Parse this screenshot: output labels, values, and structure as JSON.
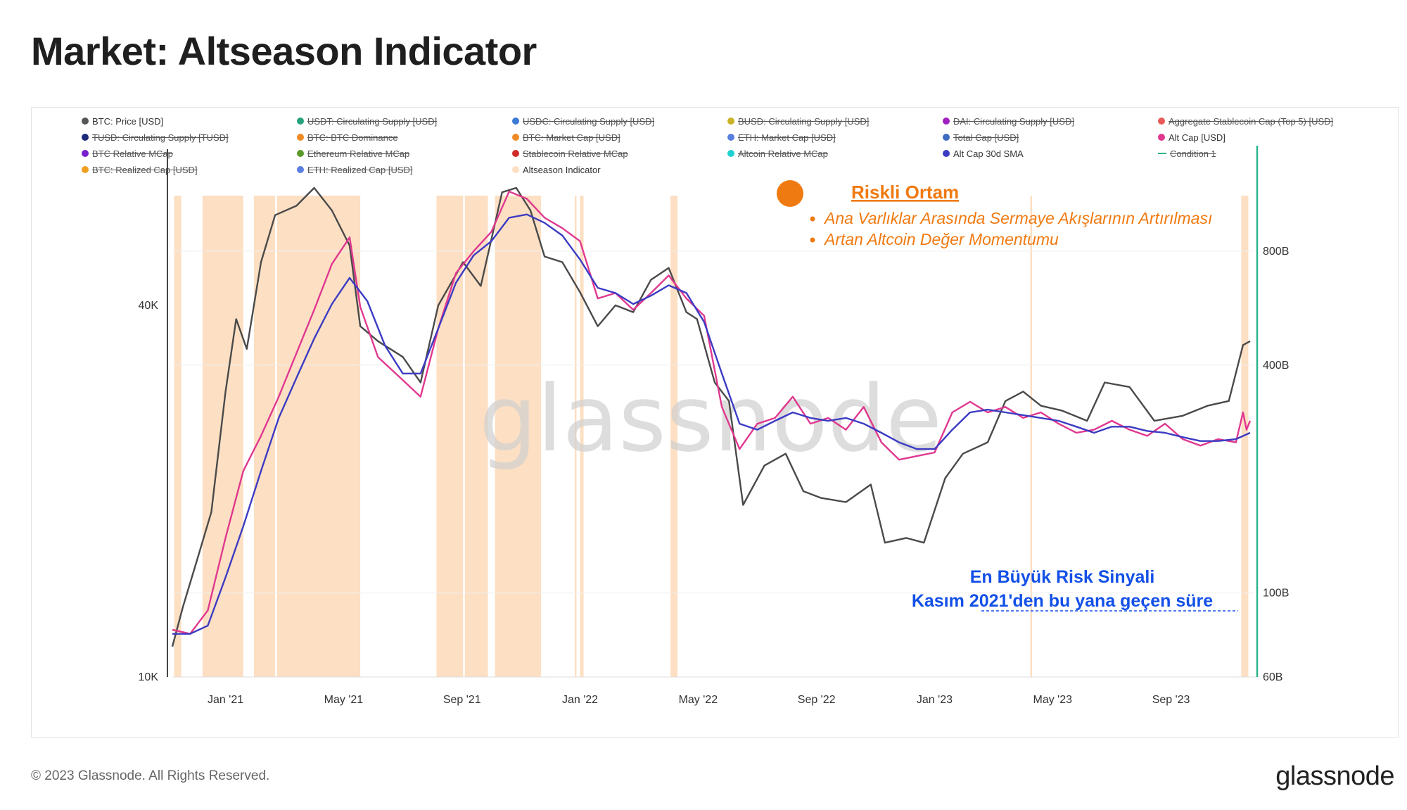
{
  "page": {
    "title": "Market: Altseason Indicator",
    "copyright": "© 2023 Glassnode. All Rights Reserved.",
    "logo_text": "glassnode",
    "watermark": "glassnode"
  },
  "colors": {
    "btc_price": "#4a4a4a",
    "alt_cap": "#e0388f",
    "alt_sma": "#3b3bc4",
    "altseason": "#fde0c4",
    "condition_line": "#2bb38a",
    "annotation_orange": "#f07a12",
    "annotation_blue": "#1350e8"
  },
  "legend": [
    {
      "label": "BTC: Price [USD]",
      "color": "#555555",
      "active": true,
      "marker": "dot"
    },
    {
      "label": "USDT: Circulating Supply [USD]",
      "color": "#26a17b",
      "active": false,
      "marker": "dot"
    },
    {
      "label": "USDC: Circulating Supply [USD]",
      "color": "#3a7bd5",
      "active": false,
      "marker": "dot"
    },
    {
      "label": "BUSD: Circulating Supply [USD]",
      "color": "#c9b427",
      "active": false,
      "marker": "dot"
    },
    {
      "label": "DAI: Circulating Supply [USD]",
      "color": "#a020c0",
      "active": false,
      "marker": "dot"
    },
    {
      "label": "Aggregate Stablecoin Cap (Top 5) [USD]",
      "color": "#e85a5a",
      "active": false,
      "marker": "dot"
    },
    {
      "label": "TUSD: Circulating Supply [TUSD]",
      "color": "#1c2a7a",
      "active": false,
      "marker": "dot"
    },
    {
      "label": "BTC: BTC Dominance",
      "color": "#f08a24",
      "active": false,
      "marker": "dot"
    },
    {
      "label": "BTC: Market Cap [USD]",
      "color": "#f08a24",
      "active": false,
      "marker": "dot"
    },
    {
      "label": "ETH: Market Cap [USD]",
      "color": "#5b7fe0",
      "active": false,
      "marker": "dot"
    },
    {
      "label": "Total Cap [USD]",
      "color": "#3d6cc0",
      "active": false,
      "marker": "dot"
    },
    {
      "label": "Alt Cap [USD]",
      "color": "#e0388f",
      "active": true,
      "marker": "dot"
    },
    {
      "label": "BTC Relative MCap",
      "color": "#7a1fd0",
      "active": false,
      "marker": "dot"
    },
    {
      "label": "Ethereum Relative MCap",
      "color": "#5a9a2a",
      "active": false,
      "marker": "dot"
    },
    {
      "label": "Stablecoin Relative MCap",
      "color": "#d02a2a",
      "active": false,
      "marker": "dot"
    },
    {
      "label": "Altcoin Relative MCap",
      "color": "#20d0d0",
      "active": false,
      "marker": "dot"
    },
    {
      "label": "Alt Cap 30d SMA",
      "color": "#3b3bc4",
      "active": true,
      "marker": "dot"
    },
    {
      "label": "Condition 1",
      "color": "#2bb38a",
      "active": false,
      "marker": "dash"
    },
    {
      "label": "BTC: Realized Cap [USD]",
      "color": "#f0a020",
      "active": false,
      "marker": "dot"
    },
    {
      "label": "ETH: Realized Cap [USD]",
      "color": "#5b7fe0",
      "active": false,
      "marker": "dot"
    },
    {
      "label": "Altseason Indicator",
      "color": "#fde0c4",
      "active": true,
      "marker": "dot"
    }
  ],
  "annotations": {
    "risk_title": "Riskli Ortam",
    "risk_bullets": [
      "Ana Varlıklar Arasında Sermaye Akışlarının Artırılması",
      "Artan Altcoin Değer Momentumu"
    ],
    "signal_line1": "En Büyük Risk Sinyali",
    "signal_line2": "Kasım 2021'den bu yana geçen süre"
  },
  "chart_data": {
    "type": "line",
    "title": "Market: Altseason Indicator",
    "x_range": [
      2020.85,
      2023.9
    ],
    "x_ticks": [
      {
        "label": "Jan '21",
        "t": 2021.0
      },
      {
        "label": "May '21",
        "t": 2021.333
      },
      {
        "label": "Sep '21",
        "t": 2021.667
      },
      {
        "label": "Jan '22",
        "t": 2022.0
      },
      {
        "label": "May '22",
        "t": 2022.333
      },
      {
        "label": "Sep '22",
        "t": 2022.667
      },
      {
        "label": "Jan '23",
        "t": 2023.0
      },
      {
        "label": "May '23",
        "t": 2023.333
      },
      {
        "label": "Sep '23",
        "t": 2023.667
      }
    ],
    "left_axis": {
      "scale": "log",
      "range": [
        10000,
        72000
      ],
      "ticks": [
        {
          "label": "10K",
          "v": 10000
        },
        {
          "label": "40K",
          "v": 40000
        }
      ]
    },
    "right_axis": {
      "scale": "log",
      "range": [
        60000000000,
        1500000000000
      ],
      "ticks": [
        {
          "label": "60B",
          "v": 60000000000
        },
        {
          "label": "100B",
          "v": 100000000000
        },
        {
          "label": "400B",
          "v": 400000000000
        },
        {
          "label": "800B",
          "v": 800000000000
        }
      ]
    },
    "condition_line_t": 2023.9,
    "altseason_periods": [
      [
        2020.855,
        2020.875
      ],
      [
        2020.935,
        2021.05
      ],
      [
        2021.08,
        2021.14
      ],
      [
        2021.145,
        2021.38
      ],
      [
        2021.595,
        2021.67
      ],
      [
        2021.675,
        2021.74
      ],
      [
        2021.76,
        2021.89
      ],
      [
        2021.985,
        2021.99
      ],
      [
        2022.0,
        2022.01
      ],
      [
        2022.255,
        2022.275
      ],
      [
        2023.27,
        2023.275
      ],
      [
        2023.865,
        2023.885
      ]
    ],
    "series": [
      {
        "name": "BTC: Price [USD]",
        "axis": "left",
        "points": [
          [
            2020.85,
            11200
          ],
          [
            2020.88,
            13000
          ],
          [
            2020.92,
            15500
          ],
          [
            2020.96,
            18500
          ],
          [
            2021.0,
            29000
          ],
          [
            2021.03,
            38000
          ],
          [
            2021.06,
            34000
          ],
          [
            2021.1,
            47000
          ],
          [
            2021.14,
            56000
          ],
          [
            2021.2,
            58000
          ],
          [
            2021.25,
            62000
          ],
          [
            2021.3,
            57000
          ],
          [
            2021.35,
            50000
          ],
          [
            2021.38,
            37000
          ],
          [
            2021.43,
            35000
          ],
          [
            2021.5,
            33000
          ],
          [
            2021.55,
            30000
          ],
          [
            2021.6,
            40000
          ],
          [
            2021.67,
            47000
          ],
          [
            2021.72,
            43000
          ],
          [
            2021.78,
            61000
          ],
          [
            2021.82,
            62000
          ],
          [
            2021.86,
            57000
          ],
          [
            2021.9,
            48000
          ],
          [
            2021.95,
            47000
          ],
          [
            2022.0,
            42000
          ],
          [
            2022.05,
            37000
          ],
          [
            2022.1,
            40000
          ],
          [
            2022.15,
            39000
          ],
          [
            2022.2,
            44000
          ],
          [
            2022.25,
            46000
          ],
          [
            2022.3,
            39000
          ],
          [
            2022.33,
            38000
          ],
          [
            2022.38,
            30000
          ],
          [
            2022.42,
            28000
          ],
          [
            2022.46,
            19000
          ],
          [
            2022.52,
            22000
          ],
          [
            2022.58,
            23000
          ],
          [
            2022.63,
            20000
          ],
          [
            2022.68,
            19500
          ],
          [
            2022.75,
            19200
          ],
          [
            2022.82,
            20500
          ],
          [
            2022.86,
            16500
          ],
          [
            2022.92,
            16800
          ],
          [
            2022.97,
            16500
          ],
          [
            2023.03,
            21000
          ],
          [
            2023.08,
            23000
          ],
          [
            2023.15,
            24000
          ],
          [
            2023.2,
            28000
          ],
          [
            2023.25,
            29000
          ],
          [
            2023.3,
            27500
          ],
          [
            2023.36,
            27000
          ],
          [
            2023.43,
            26000
          ],
          [
            2023.48,
            30000
          ],
          [
            2023.55,
            29500
          ],
          [
            2023.62,
            26000
          ],
          [
            2023.7,
            26500
          ],
          [
            2023.77,
            27500
          ],
          [
            2023.83,
            28000
          ],
          [
            2023.87,
            34500
          ],
          [
            2023.89,
            35000
          ]
        ]
      },
      {
        "name": "Alt Cap [USD]",
        "axis": "right",
        "points": [
          [
            2020.85,
            80000000000
          ],
          [
            2020.9,
            78000000000
          ],
          [
            2020.95,
            90000000000
          ],
          [
            2021.0,
            140000000000
          ],
          [
            2021.05,
            210000000000
          ],
          [
            2021.1,
            260000000000
          ],
          [
            2021.15,
            330000000000
          ],
          [
            2021.2,
            430000000000
          ],
          [
            2021.25,
            560000000000
          ],
          [
            2021.3,
            740000000000
          ],
          [
            2021.35,
            870000000000
          ],
          [
            2021.38,
            570000000000
          ],
          [
            2021.43,
            420000000000
          ],
          [
            2021.48,
            380000000000
          ],
          [
            2021.55,
            330000000000
          ],
          [
            2021.6,
            500000000000
          ],
          [
            2021.65,
            700000000000
          ],
          [
            2021.7,
            800000000000
          ],
          [
            2021.75,
            900000000000
          ],
          [
            2021.8,
            1150000000000
          ],
          [
            2021.85,
            1100000000000
          ],
          [
            2021.9,
            980000000000
          ],
          [
            2021.95,
            920000000000
          ],
          [
            2022.0,
            850000000000
          ],
          [
            2022.05,
            600000000000
          ],
          [
            2022.1,
            620000000000
          ],
          [
            2022.15,
            560000000000
          ],
          [
            2022.2,
            620000000000
          ],
          [
            2022.25,
            690000000000
          ],
          [
            2022.3,
            600000000000
          ],
          [
            2022.35,
            540000000000
          ],
          [
            2022.4,
            310000000000
          ],
          [
            2022.45,
            240000000000
          ],
          [
            2022.5,
            280000000000
          ],
          [
            2022.55,
            290000000000
          ],
          [
            2022.6,
            330000000000
          ],
          [
            2022.65,
            280000000000
          ],
          [
            2022.7,
            290000000000
          ],
          [
            2022.75,
            270000000000
          ],
          [
            2022.8,
            310000000000
          ],
          [
            2022.85,
            250000000000
          ],
          [
            2022.9,
            225000000000
          ],
          [
            2022.95,
            230000000000
          ],
          [
            2023.0,
            235000000000
          ],
          [
            2023.05,
            300000000000
          ],
          [
            2023.1,
            320000000000
          ],
          [
            2023.15,
            300000000000
          ],
          [
            2023.2,
            310000000000
          ],
          [
            2023.25,
            290000000000
          ],
          [
            2023.3,
            300000000000
          ],
          [
            2023.35,
            280000000000
          ],
          [
            2023.4,
            265000000000
          ],
          [
            2023.45,
            270000000000
          ],
          [
            2023.5,
            285000000000
          ],
          [
            2023.55,
            270000000000
          ],
          [
            2023.6,
            260000000000
          ],
          [
            2023.65,
            280000000000
          ],
          [
            2023.7,
            255000000000
          ],
          [
            2023.75,
            245000000000
          ],
          [
            2023.8,
            255000000000
          ],
          [
            2023.85,
            250000000000
          ],
          [
            2023.87,
            300000000000
          ],
          [
            2023.88,
            270000000000
          ],
          [
            2023.89,
            285000000000
          ]
        ]
      },
      {
        "name": "Alt Cap 30d SMA",
        "axis": "right",
        "points": [
          [
            2020.85,
            78000000000
          ],
          [
            2020.9,
            78000000000
          ],
          [
            2020.95,
            82000000000
          ],
          [
            2021.0,
            110000000000
          ],
          [
            2021.05,
            150000000000
          ],
          [
            2021.1,
            210000000000
          ],
          [
            2021.15,
            290000000000
          ],
          [
            2021.2,
            370000000000
          ],
          [
            2021.25,
            470000000000
          ],
          [
            2021.3,
            580000000000
          ],
          [
            2021.35,
            680000000000
          ],
          [
            2021.4,
            590000000000
          ],
          [
            2021.45,
            450000000000
          ],
          [
            2021.5,
            380000000000
          ],
          [
            2021.55,
            380000000000
          ],
          [
            2021.6,
            500000000000
          ],
          [
            2021.65,
            660000000000
          ],
          [
            2021.7,
            780000000000
          ],
          [
            2021.75,
            850000000000
          ],
          [
            2021.8,
            980000000000
          ],
          [
            2021.85,
            1000000000000
          ],
          [
            2021.9,
            950000000000
          ],
          [
            2021.95,
            880000000000
          ],
          [
            2022.0,
            760000000000
          ],
          [
            2022.05,
            640000000000
          ],
          [
            2022.1,
            620000000000
          ],
          [
            2022.15,
            580000000000
          ],
          [
            2022.2,
            610000000000
          ],
          [
            2022.25,
            650000000000
          ],
          [
            2022.3,
            620000000000
          ],
          [
            2022.35,
            520000000000
          ],
          [
            2022.4,
            380000000000
          ],
          [
            2022.45,
            280000000000
          ],
          [
            2022.5,
            270000000000
          ],
          [
            2022.55,
            285000000000
          ],
          [
            2022.6,
            300000000000
          ],
          [
            2022.65,
            290000000000
          ],
          [
            2022.7,
            285000000000
          ],
          [
            2022.75,
            290000000000
          ],
          [
            2022.8,
            280000000000
          ],
          [
            2022.85,
            265000000000
          ],
          [
            2022.9,
            250000000000
          ],
          [
            2022.95,
            240000000000
          ],
          [
            2023.0,
            240000000000
          ],
          [
            2023.05,
            270000000000
          ],
          [
            2023.1,
            300000000000
          ],
          [
            2023.15,
            305000000000
          ],
          [
            2023.2,
            300000000000
          ],
          [
            2023.25,
            295000000000
          ],
          [
            2023.3,
            290000000000
          ],
          [
            2023.35,
            285000000000
          ],
          [
            2023.4,
            275000000000
          ],
          [
            2023.45,
            265000000000
          ],
          [
            2023.5,
            275000000000
          ],
          [
            2023.55,
            275000000000
          ],
          [
            2023.6,
            268000000000
          ],
          [
            2023.65,
            265000000000
          ],
          [
            2023.7,
            258000000000
          ],
          [
            2023.75,
            252000000000
          ],
          [
            2023.8,
            252000000000
          ],
          [
            2023.85,
            255000000000
          ],
          [
            2023.89,
            265000000000
          ]
        ]
      }
    ]
  }
}
